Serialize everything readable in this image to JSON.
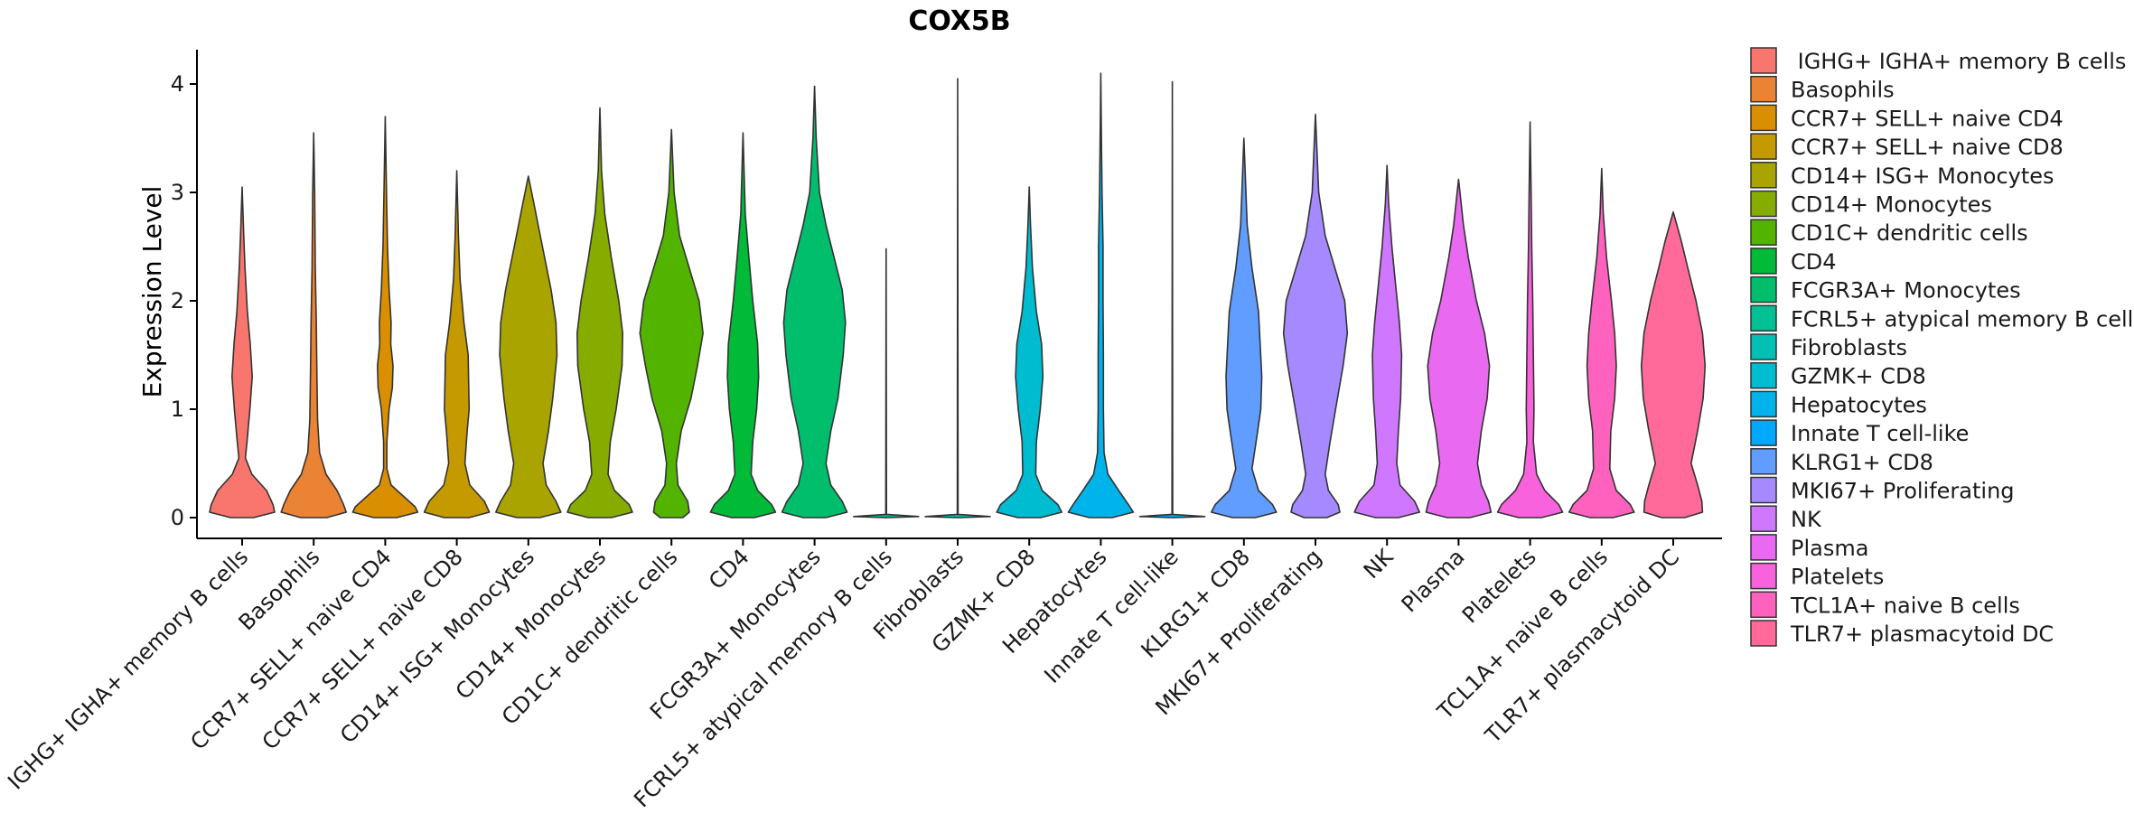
{
  "chart_data": {
    "type": "violin",
    "title": "COX5B",
    "xlabel": "",
    "ylabel": "Expression Level",
    "ylim": [
      -0.2,
      4.3
    ],
    "yticks": [
      0,
      1,
      2,
      3,
      4
    ],
    "legend_position": "right",
    "grid": false,
    "categories": [
      "IGHG+ IGHA+ memory B cells",
      "Basophils",
      "CCR7+ SELL+ naive CD4",
      "CCR7+ SELL+ naive CD8",
      "CD14+ ISG+ Monocytes",
      "CD14+ Monocytes",
      "CD1C+ dendritic cells",
      "CD4",
      "FCGR3A+ Monocytes",
      "FCRL5+ atypical memory B cells",
      "Fibroblasts",
      "GZMK+ CD8",
      "Hepatocytes",
      "Innate T cell-like",
      "KLRG1+ CD8",
      "MKI67+ Proliferating",
      "NK",
      "Plasma",
      "Platelets",
      "TCL1A+ naive B cells",
      "TLR7+ plasmacytoid DC"
    ],
    "legend_labels": [
      " IGHG+ IGHA+ memory B cells",
      "Basophils",
      "CCR7+ SELL+ naive CD4",
      "CCR7+ SELL+ naive CD8",
      "CD14+ ISG+ Monocytes",
      "CD14+ Monocytes",
      "CD1C+ dendritic cells",
      "CD4",
      "FCGR3A+ Monocytes",
      "FCRL5+ atypical memory B cells",
      "Fibroblasts",
      "GZMK+ CD8",
      "Hepatocytes",
      "Innate T cell-like",
      "KLRG1+ CD8",
      "MKI67+ Proliferating",
      "NK",
      "Plasma",
      "Platelets",
      "TCL1A+ naive B cells",
      "TLR7+ plasmacytoid DC"
    ],
    "colors": [
      "#F8766D",
      "#EB8335",
      "#DA8F00",
      "#C49A00",
      "#A9A400",
      "#86AC00",
      "#53B400",
      "#00BA38",
      "#00BE6C",
      "#00C094",
      "#00C0B4",
      "#00BCD1",
      "#00B4EB",
      "#00A9FF",
      "#619CFF",
      "#A58AFF",
      "#CF78FF",
      "#E96AF0",
      "#F962DD",
      "#FF62BE",
      "#FF6A9A"
    ],
    "violins": [
      {
        "max": 3.05,
        "shape": [
          [
            0.0,
            0.35
          ],
          [
            0.05,
            1.0
          ],
          [
            0.12,
            0.95
          ],
          [
            0.25,
            0.75
          ],
          [
            0.4,
            0.3
          ],
          [
            0.55,
            0.1
          ],
          [
            0.7,
            0.15
          ],
          [
            1.0,
            0.24
          ],
          [
            1.3,
            0.31
          ],
          [
            1.6,
            0.25
          ],
          [
            1.9,
            0.16
          ],
          [
            2.3,
            0.09
          ],
          [
            2.6,
            0.05
          ],
          [
            3.05,
            0.0
          ]
        ]
      },
      {
        "max": 3.55,
        "shape": [
          [
            0.0,
            0.4
          ],
          [
            0.05,
            1.0
          ],
          [
            0.12,
            0.92
          ],
          [
            0.25,
            0.72
          ],
          [
            0.4,
            0.38
          ],
          [
            0.6,
            0.18
          ],
          [
            0.9,
            0.12
          ],
          [
            1.3,
            0.1
          ],
          [
            1.8,
            0.08
          ],
          [
            2.3,
            0.05
          ],
          [
            3.0,
            0.03
          ],
          [
            3.55,
            0.0
          ]
        ]
      },
      {
        "max": 3.7,
        "shape": [
          [
            0.0,
            0.35
          ],
          [
            0.05,
            1.0
          ],
          [
            0.1,
            0.92
          ],
          [
            0.2,
            0.55
          ],
          [
            0.3,
            0.18
          ],
          [
            0.45,
            0.05
          ],
          [
            0.7,
            0.05
          ],
          [
            1.0,
            0.12
          ],
          [
            1.2,
            0.22
          ],
          [
            1.4,
            0.24
          ],
          [
            1.6,
            0.17
          ],
          [
            1.8,
            0.18
          ],
          [
            2.1,
            0.12
          ],
          [
            2.5,
            0.07
          ],
          [
            3.0,
            0.04
          ],
          [
            3.7,
            0.0
          ]
        ]
      },
      {
        "max": 3.2,
        "shape": [
          [
            0.0,
            0.38
          ],
          [
            0.05,
            1.0
          ],
          [
            0.15,
            0.85
          ],
          [
            0.3,
            0.4
          ],
          [
            0.5,
            0.25
          ],
          [
            0.8,
            0.32
          ],
          [
            1.0,
            0.38
          ],
          [
            1.3,
            0.36
          ],
          [
            1.5,
            0.35
          ],
          [
            1.8,
            0.22
          ],
          [
            2.2,
            0.1
          ],
          [
            2.6,
            0.05
          ],
          [
            3.2,
            0.0
          ]
        ]
      },
      {
        "max": 3.15,
        "shape": [
          [
            0.0,
            0.35
          ],
          [
            0.05,
            1.0
          ],
          [
            0.15,
            0.85
          ],
          [
            0.3,
            0.55
          ],
          [
            0.5,
            0.45
          ],
          [
            0.8,
            0.62
          ],
          [
            1.1,
            0.75
          ],
          [
            1.5,
            0.88
          ],
          [
            1.8,
            0.85
          ],
          [
            2.1,
            0.7
          ],
          [
            2.4,
            0.5
          ],
          [
            2.7,
            0.3
          ],
          [
            2.9,
            0.17
          ],
          [
            3.15,
            0.0
          ]
        ]
      },
      {
        "max": 3.78,
        "shape": [
          [
            0.0,
            0.35
          ],
          [
            0.05,
            1.0
          ],
          [
            0.12,
            0.9
          ],
          [
            0.25,
            0.45
          ],
          [
            0.4,
            0.25
          ],
          [
            0.7,
            0.32
          ],
          [
            1.0,
            0.5
          ],
          [
            1.4,
            0.68
          ],
          [
            1.7,
            0.7
          ],
          [
            2.0,
            0.58
          ],
          [
            2.4,
            0.35
          ],
          [
            2.8,
            0.15
          ],
          [
            3.2,
            0.05
          ],
          [
            3.78,
            0.0
          ]
        ]
      },
      {
        "max": 3.58,
        "shape": [
          [
            0.0,
            0.35
          ],
          [
            0.05,
            0.55
          ],
          [
            0.15,
            0.5
          ],
          [
            0.3,
            0.2
          ],
          [
            0.5,
            0.15
          ],
          [
            0.8,
            0.3
          ],
          [
            1.1,
            0.6
          ],
          [
            1.4,
            0.8
          ],
          [
            1.7,
            0.97
          ],
          [
            2.0,
            0.85
          ],
          [
            2.3,
            0.55
          ],
          [
            2.6,
            0.25
          ],
          [
            3.0,
            0.08
          ],
          [
            3.58,
            0.0
          ]
        ]
      },
      {
        "max": 3.55,
        "shape": [
          [
            0.0,
            0.35
          ],
          [
            0.05,
            1.0
          ],
          [
            0.12,
            0.88
          ],
          [
            0.25,
            0.45
          ],
          [
            0.4,
            0.25
          ],
          [
            0.7,
            0.3
          ],
          [
            1.0,
            0.42
          ],
          [
            1.3,
            0.48
          ],
          [
            1.6,
            0.45
          ],
          [
            2.0,
            0.3
          ],
          [
            2.4,
            0.18
          ],
          [
            2.8,
            0.07
          ],
          [
            3.55,
            0.0
          ]
        ]
      },
      {
        "max": 3.98,
        "shape": [
          [
            0.0,
            0.35
          ],
          [
            0.05,
            1.0
          ],
          [
            0.15,
            0.85
          ],
          [
            0.3,
            0.5
          ],
          [
            0.5,
            0.35
          ],
          [
            0.8,
            0.5
          ],
          [
            1.1,
            0.72
          ],
          [
            1.5,
            0.88
          ],
          [
            1.8,
            0.95
          ],
          [
            2.1,
            0.85
          ],
          [
            2.4,
            0.6
          ],
          [
            2.7,
            0.35
          ],
          [
            3.0,
            0.15
          ],
          [
            3.5,
            0.05
          ],
          [
            3.98,
            0.0
          ]
        ]
      },
      {
        "max": 2.48,
        "shape": [
          [
            0.0,
            0.05
          ],
          [
            0.01,
            1.0
          ],
          [
            0.03,
            0.01
          ],
          [
            2.48,
            0.0
          ]
        ]
      },
      {
        "max": 4.05,
        "shape": [
          [
            0.0,
            0.05
          ],
          [
            0.01,
            1.0
          ],
          [
            0.03,
            0.01
          ],
          [
            4.05,
            0.0
          ]
        ]
      },
      {
        "max": 3.05,
        "shape": [
          [
            0.0,
            0.35
          ],
          [
            0.05,
            1.0
          ],
          [
            0.12,
            0.88
          ],
          [
            0.25,
            0.4
          ],
          [
            0.4,
            0.2
          ],
          [
            0.7,
            0.22
          ],
          [
            1.0,
            0.34
          ],
          [
            1.3,
            0.42
          ],
          [
            1.6,
            0.38
          ],
          [
            1.9,
            0.22
          ],
          [
            2.3,
            0.1
          ],
          [
            2.7,
            0.04
          ],
          [
            3.05,
            0.0
          ]
        ]
      },
      {
        "max": 4.1,
        "shape": [
          [
            0.0,
            0.35
          ],
          [
            0.05,
            1.0
          ],
          [
            0.12,
            0.85
          ],
          [
            0.25,
            0.55
          ],
          [
            0.4,
            0.22
          ],
          [
            0.6,
            0.1
          ],
          [
            1.0,
            0.08
          ],
          [
            1.5,
            0.08
          ],
          [
            2.0,
            0.07
          ],
          [
            2.5,
            0.07
          ],
          [
            3.0,
            0.04
          ],
          [
            3.5,
            0.02
          ],
          [
            4.1,
            0.0
          ]
        ]
      },
      {
        "max": 4.02,
        "shape": [
          [
            0.0,
            0.05
          ],
          [
            0.01,
            1.0
          ],
          [
            0.03,
            0.01
          ],
          [
            4.02,
            0.0
          ]
        ]
      },
      {
        "max": 3.5,
        "shape": [
          [
            0.0,
            0.35
          ],
          [
            0.05,
            1.0
          ],
          [
            0.12,
            0.88
          ],
          [
            0.25,
            0.45
          ],
          [
            0.45,
            0.25
          ],
          [
            0.75,
            0.4
          ],
          [
            1.0,
            0.52
          ],
          [
            1.3,
            0.55
          ],
          [
            1.6,
            0.5
          ],
          [
            1.9,
            0.45
          ],
          [
            2.3,
            0.25
          ],
          [
            2.7,
            0.1
          ],
          [
            3.5,
            0.0
          ]
        ]
      },
      {
        "max": 3.72,
        "shape": [
          [
            0.0,
            0.35
          ],
          [
            0.05,
            0.75
          ],
          [
            0.12,
            0.7
          ],
          [
            0.25,
            0.4
          ],
          [
            0.4,
            0.3
          ],
          [
            0.7,
            0.45
          ],
          [
            1.0,
            0.62
          ],
          [
            1.4,
            0.85
          ],
          [
            1.7,
            0.98
          ],
          [
            2.0,
            0.9
          ],
          [
            2.3,
            0.6
          ],
          [
            2.6,
            0.3
          ],
          [
            3.0,
            0.1
          ],
          [
            3.72,
            0.0
          ]
        ]
      },
      {
        "max": 3.25,
        "shape": [
          [
            0.0,
            0.35
          ],
          [
            0.05,
            1.0
          ],
          [
            0.15,
            0.85
          ],
          [
            0.3,
            0.4
          ],
          [
            0.5,
            0.3
          ],
          [
            0.8,
            0.35
          ],
          [
            1.1,
            0.42
          ],
          [
            1.5,
            0.45
          ],
          [
            1.8,
            0.38
          ],
          [
            2.1,
            0.28
          ],
          [
            2.5,
            0.15
          ],
          [
            2.9,
            0.05
          ],
          [
            3.25,
            0.0
          ]
        ]
      },
      {
        "max": 3.12,
        "shape": [
          [
            0.0,
            0.35
          ],
          [
            0.05,
            1.0
          ],
          [
            0.15,
            0.92
          ],
          [
            0.3,
            0.7
          ],
          [
            0.5,
            0.58
          ],
          [
            0.8,
            0.7
          ],
          [
            1.1,
            0.88
          ],
          [
            1.4,
            0.95
          ],
          [
            1.7,
            0.8
          ],
          [
            2.0,
            0.55
          ],
          [
            2.4,
            0.3
          ],
          [
            2.7,
            0.15
          ],
          [
            3.12,
            0.0
          ]
        ]
      },
      {
        "max": 3.65,
        "shape": [
          [
            0.0,
            0.35
          ],
          [
            0.05,
            1.0
          ],
          [
            0.12,
            0.88
          ],
          [
            0.25,
            0.45
          ],
          [
            0.4,
            0.2
          ],
          [
            0.7,
            0.1
          ],
          [
            1.0,
            0.12
          ],
          [
            1.5,
            0.1
          ],
          [
            2.0,
            0.08
          ],
          [
            2.5,
            0.05
          ],
          [
            3.0,
            0.03
          ],
          [
            3.65,
            0.0
          ]
        ]
      },
      {
        "max": 3.22,
        "shape": [
          [
            0.0,
            0.35
          ],
          [
            0.05,
            1.0
          ],
          [
            0.12,
            0.88
          ],
          [
            0.25,
            0.45
          ],
          [
            0.45,
            0.25
          ],
          [
            0.8,
            0.28
          ],
          [
            1.1,
            0.4
          ],
          [
            1.4,
            0.45
          ],
          [
            1.7,
            0.4
          ],
          [
            2.0,
            0.3
          ],
          [
            2.4,
            0.15
          ],
          [
            2.8,
            0.05
          ],
          [
            3.22,
            0.0
          ]
        ]
      },
      {
        "max": 2.82,
        "shape": [
          [
            0.0,
            0.35
          ],
          [
            0.05,
            0.9
          ],
          [
            0.15,
            0.88
          ],
          [
            0.3,
            0.75
          ],
          [
            0.5,
            0.55
          ],
          [
            0.8,
            0.75
          ],
          [
            1.1,
            0.92
          ],
          [
            1.4,
            0.98
          ],
          [
            1.7,
            0.9
          ],
          [
            2.0,
            0.7
          ],
          [
            2.3,
            0.45
          ],
          [
            2.55,
            0.25
          ],
          [
            2.82,
            0.0
          ]
        ]
      }
    ]
  }
}
